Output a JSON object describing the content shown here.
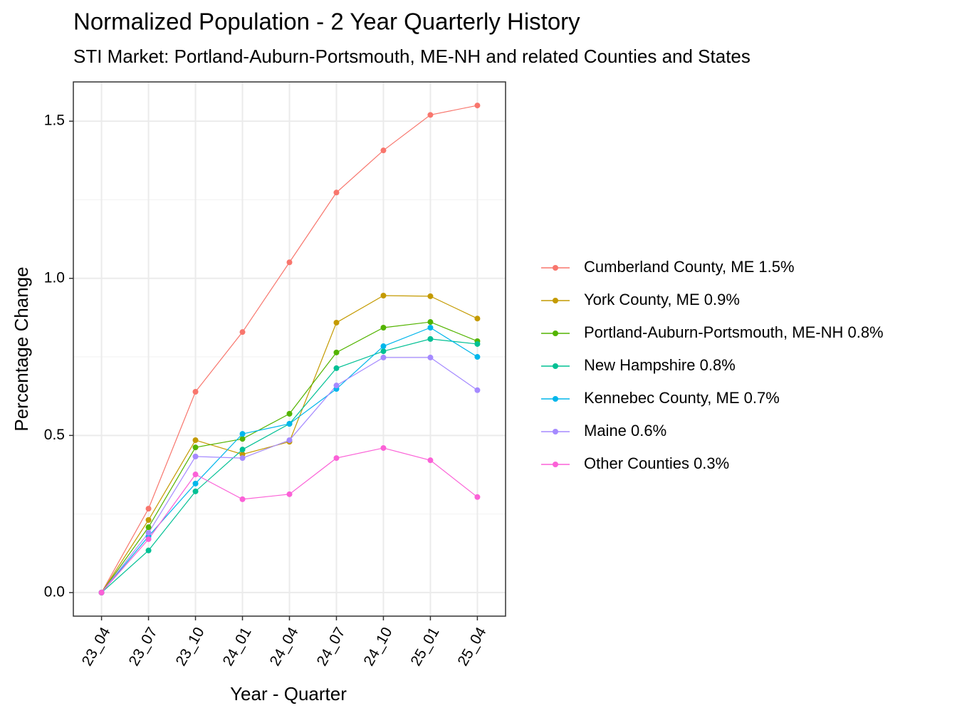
{
  "chart_data": {
    "type": "line",
    "title": "Normalized Population - 2 Year Quarterly History",
    "subtitle": "STI Market: Portland-Auburn-Portsmouth, ME-NH and related Counties and States",
    "x_label": "Year - Quarter",
    "y_label": "Percentage Change",
    "categories": [
      "23_04",
      "23_07",
      "23_10",
      "24_01",
      "24_04",
      "24_07",
      "24_10",
      "25_01",
      "25_04"
    ],
    "series": [
      {
        "name": "Cumberland County, ME 1.5%",
        "color": "#F8766D",
        "values": [
          0,
          0.267,
          0.639,
          0.829,
          1.051,
          1.273,
          1.407,
          1.52,
          1.55
        ]
      },
      {
        "name": "York County, ME 0.9%",
        "color": "#C49A00",
        "values": [
          0,
          0.231,
          0.485,
          0.44,
          0.48,
          0.859,
          0.945,
          0.943,
          0.872
        ]
      },
      {
        "name": "Portland-Auburn-Portsmouth, ME-NH 0.8%",
        "color": "#53B400",
        "values": [
          0,
          0.208,
          0.462,
          0.489,
          0.569,
          0.764,
          0.843,
          0.861,
          0.8
        ]
      },
      {
        "name": "New Hampshire 0.8%",
        "color": "#00C094",
        "values": [
          0,
          0.134,
          0.322,
          0.455,
          0.537,
          0.714,
          0.768,
          0.807,
          0.791
        ]
      },
      {
        "name": "Kennebec County, ME 0.7%",
        "color": "#00B6EB",
        "values": [
          0,
          0.179,
          0.347,
          0.505,
          0.537,
          0.648,
          0.784,
          0.843,
          0.75
        ]
      },
      {
        "name": "Maine 0.6%",
        "color": "#A58AFF",
        "values": [
          0,
          0.19,
          0.433,
          0.428,
          0.485,
          0.659,
          0.748,
          0.748,
          0.644
        ]
      },
      {
        "name": "Other Counties 0.3%",
        "color": "#FB61D7",
        "values": [
          0,
          0.17,
          0.376,
          0.297,
          0.313,
          0.428,
          0.46,
          0.421,
          0.304
        ]
      }
    ],
    "ylim": [
      -0.075,
      1.625
    ],
    "yticks": [
      {
        "value": 0,
        "label": "0.0"
      },
      0.5,
      {
        "value": 1,
        "label": "1.0"
      },
      1.5
    ],
    "grid": true,
    "legend": "right"
  }
}
